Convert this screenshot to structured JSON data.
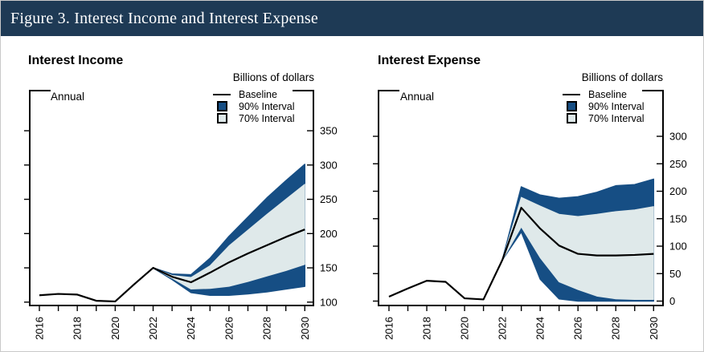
{
  "header": {
    "title": "Figure 3. Interest Income and Interest Expense"
  },
  "colors": {
    "header_bg": "#1e3a55",
    "band_90": "#164e84",
    "band_70": "#dfe9ea",
    "baseline": "#000000",
    "axis": "#000000",
    "page_border": "#c9c9c9"
  },
  "chart_data": [
    {
      "type": "area",
      "title": "Interest Income",
      "frequency_label": "Annual",
      "units_label": "Billions of dollars",
      "legend": [
        {
          "swatch": "line",
          "label": "Baseline"
        },
        {
          "swatch": "box-dark",
          "label": "90% Interval"
        },
        {
          "swatch": "box-light",
          "label": "70% Interval"
        }
      ],
      "x": [
        2016,
        2017,
        2018,
        2019,
        2020,
        2021,
        2022,
        2023,
        2024,
        2025,
        2026,
        2027,
        2028,
        2029,
        2030
      ],
      "x_tick_labels": [
        "2016",
        "2018",
        "2020",
        "2022",
        "2024",
        "2026",
        "2028",
        "2030"
      ],
      "y_ticks": [
        100,
        150,
        200,
        250,
        300,
        350
      ],
      "ylim": [
        95,
        405
      ],
      "baseline": [
        110,
        112,
        111,
        102,
        101,
        126,
        150,
        137,
        129,
        143,
        158,
        171,
        183,
        195,
        206
      ],
      "bands": {
        "start_year": 2022,
        "p90_upper": [
          150,
          141,
          140,
          164,
          196,
          224,
          252,
          277,
          301
        ],
        "p70_upper": [
          150,
          139,
          136,
          153,
          182,
          205,
          228,
          250,
          272
        ],
        "p70_lower": [
          150,
          135,
          119,
          120,
          123,
          130,
          138,
          146,
          155
        ],
        "p90_lower": [
          150,
          133,
          114,
          110,
          110,
          112,
          115,
          119,
          123
        ]
      }
    },
    {
      "type": "area",
      "title": "Interest Expense",
      "frequency_label": "Annual",
      "units_label": "Billions of dollars",
      "legend": [
        {
          "swatch": "line",
          "label": "Baseline"
        },
        {
          "swatch": "box-dark",
          "label": "90% Interval"
        },
        {
          "swatch": "box-light",
          "label": "70% Interval"
        }
      ],
      "x": [
        2016,
        2017,
        2018,
        2019,
        2020,
        2021,
        2022,
        2023,
        2024,
        2025,
        2026,
        2027,
        2028,
        2029,
        2030
      ],
      "x_tick_labels": [
        "2016",
        "2018",
        "2020",
        "2022",
        "2024",
        "2026",
        "2028",
        "2030"
      ],
      "y_ticks": [
        0,
        50,
        100,
        150,
        200,
        250,
        300
      ],
      "ylim": [
        -8,
        385
      ],
      "baseline": [
        8,
        23,
        37,
        35,
        5,
        3,
        75,
        170,
        132,
        101,
        86,
        83,
        83,
        84,
        86
      ],
      "bands": {
        "start_year": 2022,
        "p90_upper": [
          75,
          208,
          193,
          187,
          190,
          198,
          210,
          212,
          222
        ],
        "p70_upper": [
          75,
          189,
          173,
          158,
          154,
          158,
          163,
          166,
          172
        ],
        "p70_lower": [
          75,
          135,
          79,
          35,
          21,
          9,
          4,
          3,
          3
        ],
        "p90_lower": [
          75,
          126,
          40,
          4,
          0,
          0,
          0,
          0,
          0
        ]
      }
    }
  ]
}
